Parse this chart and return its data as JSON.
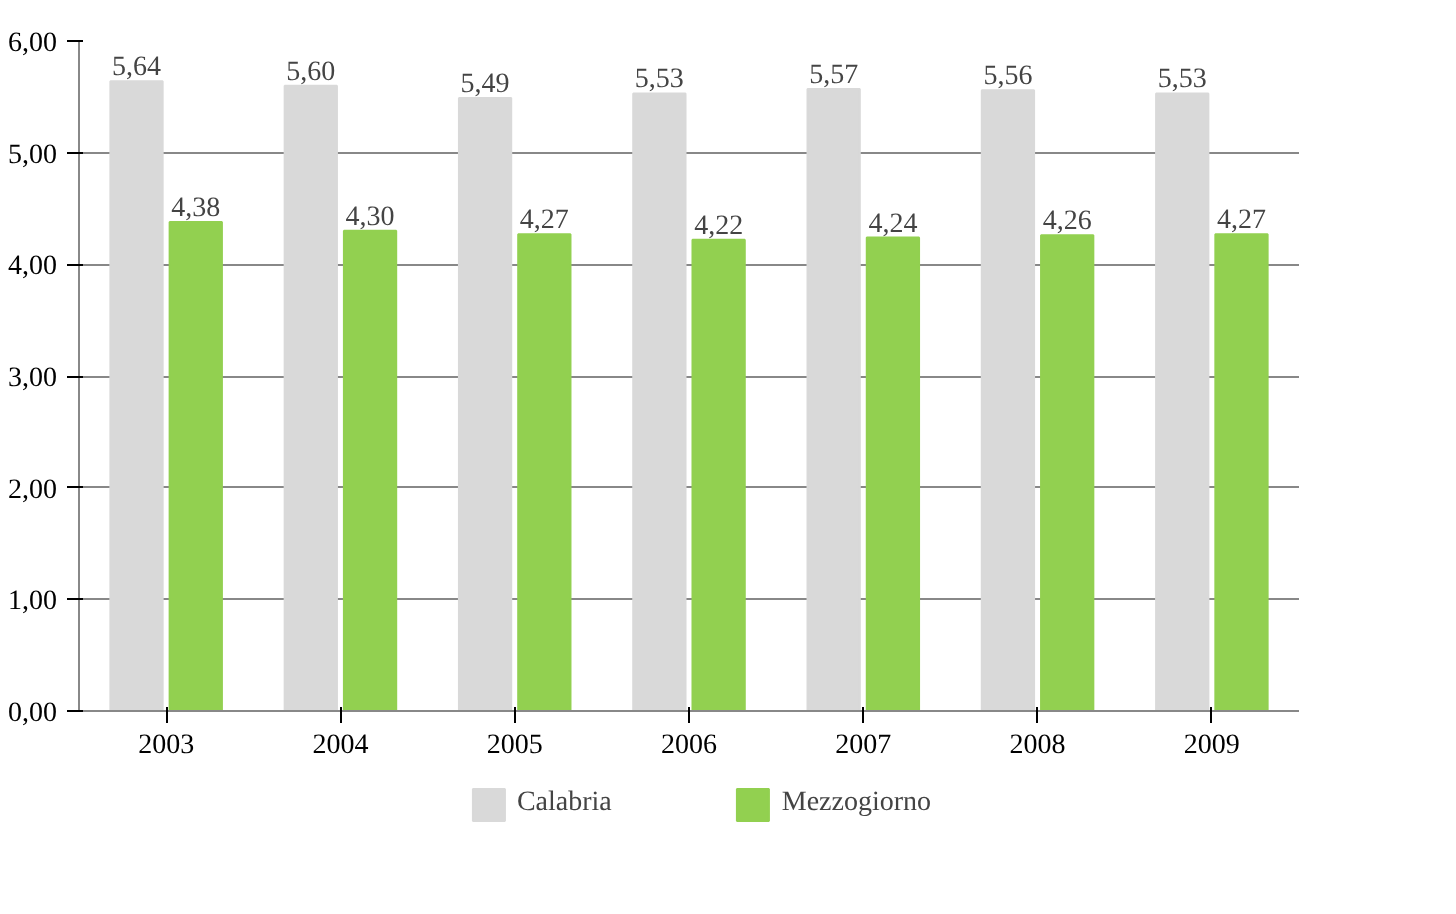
{
  "chart_data": {
    "type": "bar",
    "categories": [
      "2003",
      "2004",
      "2005",
      "2006",
      "2007",
      "2008",
      "2009"
    ],
    "series": [
      {
        "name": "Calabria",
        "color": "#d9d9d9",
        "values": [
          5.64,
          5.6,
          5.49,
          5.53,
          5.57,
          5.56,
          5.53
        ],
        "value_labels": [
          "5,64",
          "5,60",
          "5,49",
          "5,53",
          "5,57",
          "5,56",
          "5,53"
        ]
      },
      {
        "name": "Mezzogiorno",
        "color": "#92d050",
        "values": [
          4.38,
          4.3,
          4.27,
          4.22,
          4.24,
          4.26,
          4.27
        ],
        "value_labels": [
          "4,38",
          "4,30",
          "4,27",
          "4,22",
          "4,24",
          "4,26",
          "4,27"
        ]
      }
    ],
    "ylim": [
      0,
      6
    ],
    "yticks": [
      {
        "value": 0,
        "label": "0,00"
      },
      {
        "value": 1,
        "label": "1,00"
      },
      {
        "value": 2,
        "label": "2,00"
      },
      {
        "value": 3,
        "label": "3,00"
      },
      {
        "value": 4,
        "label": "4,00"
      },
      {
        "value": 5,
        "label": "5,00"
      },
      {
        "value": 6,
        "label": "6,00"
      }
    ],
    "grid": "y",
    "legend": "bottom"
  }
}
